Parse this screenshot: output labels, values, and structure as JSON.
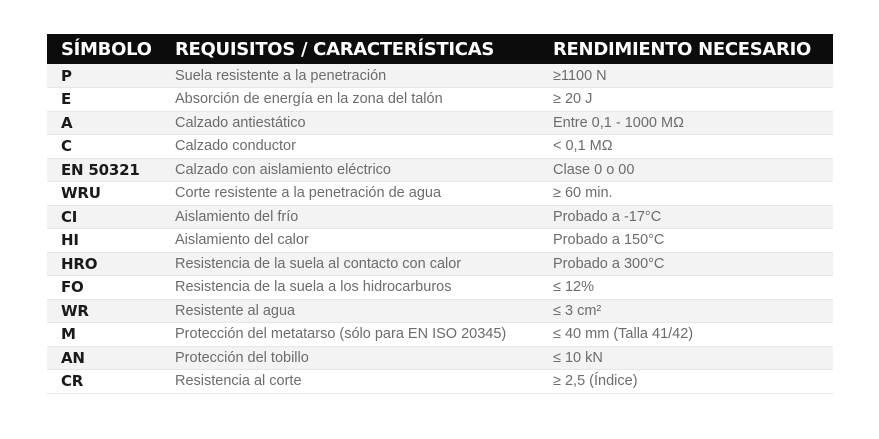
{
  "header": {
    "symbol": "SÍMBOLO",
    "requirements": "REQUISITOS / CARACTERÍSTICAS",
    "performance": "RENDIMIENTO NECESARIO"
  },
  "rows": [
    {
      "symbol": "P",
      "requirement": "Suela resistente a la penetración",
      "performance": "≥1100 N"
    },
    {
      "symbol": "E",
      "requirement": "Absorción de energía en la zona del talón",
      "performance": "≥ 20 J"
    },
    {
      "symbol": "A",
      "requirement": "Calzado antiestático",
      "performance": "Entre 0,1 - 1000 MΩ"
    },
    {
      "symbol": "C",
      "requirement": "Calzado conductor",
      "performance": "< 0,1 MΩ"
    },
    {
      "symbol": "EN 50321",
      "requirement": "Calzado con aislamiento eléctrico",
      "performance": "Clase 0 o 00"
    },
    {
      "symbol": "WRU",
      "requirement": "Corte resistente a la penetración de agua",
      "performance": "≥ 60 min."
    },
    {
      "symbol": "CI",
      "requirement": "Aislamiento del frío",
      "performance": "Probado a -17°C"
    },
    {
      "symbol": "HI",
      "requirement": "Aislamiento del calor",
      "performance": "Probado a 150°C"
    },
    {
      "symbol": "HRO",
      "requirement": "Resistencia de la suela al contacto con calor",
      "performance": "Probado a 300°C"
    },
    {
      "symbol": "FO",
      "requirement": "Resistencia de la suela a los hidrocarburos",
      "performance": "≤ 12%"
    },
    {
      "symbol": "WR",
      "requirement": "Resistente al agua",
      "performance": "≤ 3 cm²"
    },
    {
      "symbol": "M",
      "requirement": "Protección del metatarso (sólo para EN ISO 20345)",
      "performance": "≤ 40 mm (Talla 41/42)"
    },
    {
      "symbol": "AN",
      "requirement": "Protección del tobillo",
      "performance": "≤ 10 kN"
    },
    {
      "symbol": "CR",
      "requirement": "Resistencia al corte",
      "performance": "≥ 2,5 (Índice)"
    }
  ]
}
